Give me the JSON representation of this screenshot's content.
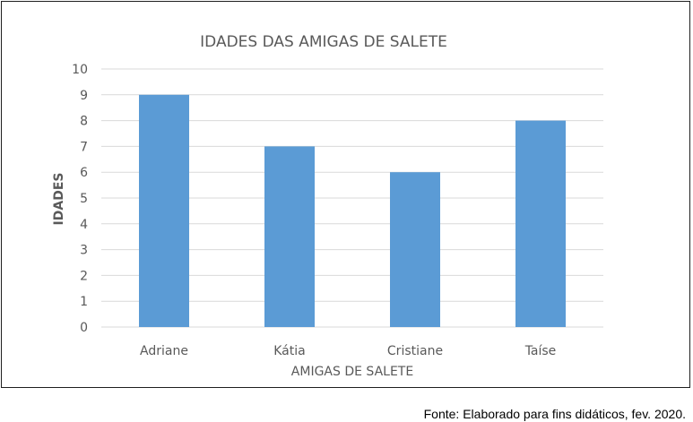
{
  "chart_data": {
    "type": "bar",
    "title": "IDADES DAS AMIGAS DE SALETE",
    "xlabel": "AMIGAS DE SALETE",
    "ylabel": "IDADES",
    "categories": [
      "Adriane",
      "Kátia",
      "Cristiane",
      "Taíse"
    ],
    "values": [
      9,
      7,
      6,
      8
    ],
    "ylim": [
      0,
      10
    ],
    "yticks": [
      "0",
      "1",
      "2",
      "3",
      "4",
      "5",
      "6",
      "7",
      "8",
      "9",
      "10"
    ],
    "grid": true,
    "bar_color": "#5b9bd5",
    "grid_color": "#d9d9d9"
  },
  "source_note": "Fonte: Elaborado para fins didáticos, fev. 2020."
}
